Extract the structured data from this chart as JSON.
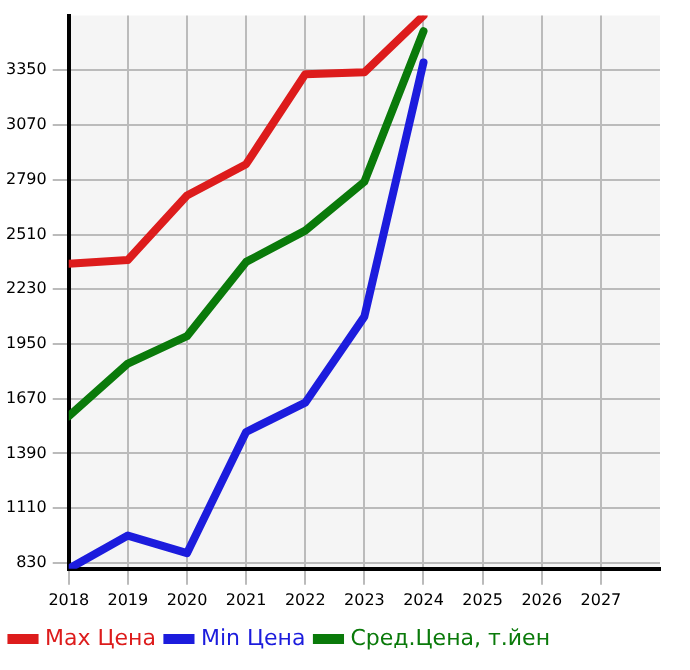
{
  "chart_data": {
    "type": "line",
    "x": [
      2018,
      2019,
      2020,
      2021,
      2022,
      2023,
      2024
    ],
    "xlim": [
      2018,
      2028
    ],
    "xticks": [
      2018,
      2019,
      2020,
      2021,
      2022,
      2023,
      2024,
      2025,
      2026,
      2027
    ],
    "ylim": [
      800,
      3630
    ],
    "yticks": [
      830,
      1110,
      1390,
      1670,
      1950,
      2230,
      2510,
      2790,
      3070,
      3350
    ],
    "grid": true,
    "legend": "bottom",
    "marker": "none",
    "line_style": "solid",
    "series": [
      {
        "name": "Max Цена",
        "color": "#dd1c1c",
        "values": [
          2360,
          2380,
          2710,
          2870,
          3330,
          3340,
          3630
        ]
      },
      {
        "name": "Min Цена",
        "color": "#1c1cdd",
        "values": [
          800,
          970,
          880,
          1500,
          1650,
          2090,
          3390
        ]
      },
      {
        "name": "Сред.Цена, т.йен",
        "color": "#0a7a0a",
        "values": [
          1580,
          1850,
          1990,
          2370,
          2530,
          2780,
          3550
        ]
      }
    ]
  }
}
